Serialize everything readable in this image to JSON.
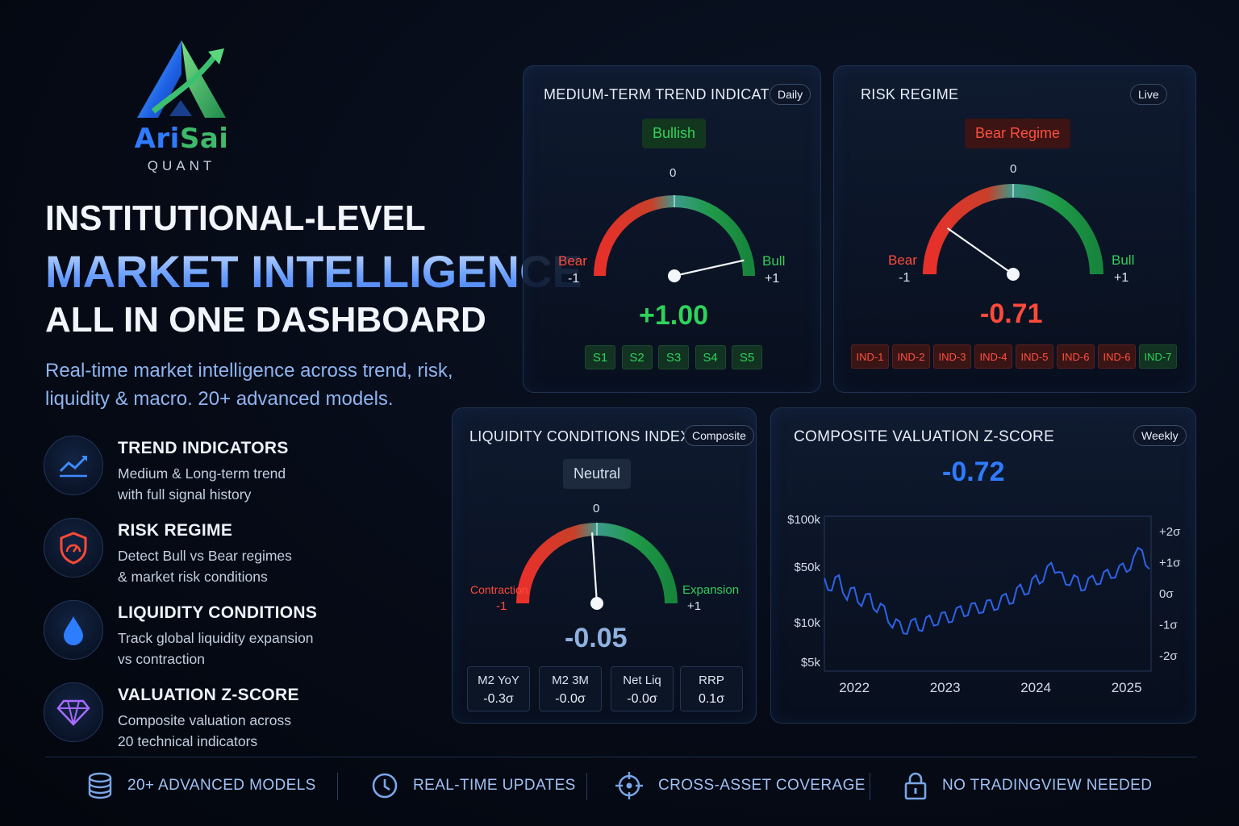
{
  "brand": {
    "name_part1": "Ari",
    "name_part2": "Sai",
    "subtitle": "QUANT"
  },
  "headline": {
    "line1": "INSTITUTIONAL-LEVEL",
    "line2": "MARKET INTELLIGENCE",
    "line3": "ALL IN ONE DASHBOARD",
    "subtext": "Real-time market intelligence across trend, risk, liquidity & macro. 20+ advanced models."
  },
  "features": [
    {
      "title": "TREND INDICATORS",
      "desc_line1": "Medium & Long-term trend",
      "desc_line2": "with full signal history",
      "icon": "trend-chart-icon"
    },
    {
      "title": "RISK REGIME",
      "desc_line1": "Detect Bull vs Bear regimes",
      "desc_line2": "& market risk conditions",
      "icon": "shield-gauge-icon"
    },
    {
      "title": "LIQUIDITY CONDITIONS",
      "desc_line1": "Track global liquidity expansion",
      "desc_line2": "vs contraction",
      "icon": "water-drop-icon"
    },
    {
      "title": "VALUATION Z-SCORE",
      "desc_line1": "Composite valuation across",
      "desc_line2": "20 technical indicators",
      "icon": "diamond-icon"
    }
  ],
  "trend_card": {
    "title": "MEDIUM-TERM TREND INDICATOR",
    "pill": "Daily",
    "status": "Bullish",
    "zero_label": "0",
    "left_label": "Bear",
    "left_value": "-1",
    "right_label": "Bull",
    "right_value": "+1",
    "value": 1.0,
    "value_text": "+1.00",
    "signals": [
      "S1",
      "S2",
      "S3",
      "S4",
      "S5"
    ]
  },
  "risk_card": {
    "title": "RISK REGIME",
    "pill": "Live",
    "status": "Bear Regime",
    "zero_label": "0",
    "left_label": "Bear",
    "left_value": "-1",
    "right_label": "Bull",
    "right_value": "+1",
    "value": -0.71,
    "value_text": "-0.71",
    "indicators": [
      {
        "label": "IND-1",
        "state": "bear"
      },
      {
        "label": "IND-2",
        "state": "bear"
      },
      {
        "label": "IND-3",
        "state": "bear"
      },
      {
        "label": "IND-4",
        "state": "bear"
      },
      {
        "label": "IND-5",
        "state": "bear"
      },
      {
        "label": "IND-6",
        "state": "bear"
      },
      {
        "label": "IND-6",
        "state": "bear"
      },
      {
        "label": "IND-7",
        "state": "bull"
      }
    ]
  },
  "liquidity_card": {
    "title": "LIQUIDITY CONDITIONS INDEX",
    "pill": "Composite",
    "status": "Neutral",
    "zero_label": "0",
    "left_label": "Contraction",
    "left_value": "-1",
    "right_label": "Expansion",
    "right_value": "+1",
    "value": -0.05,
    "value_text": "-0.05",
    "metrics": [
      {
        "name": "M2 YoY",
        "value": "-0.3σ"
      },
      {
        "name": "M2 3M",
        "value": "-0.0σ"
      },
      {
        "name": "Net Liq",
        "value": "-0.0σ"
      },
      {
        "name": "RRP",
        "value": "0.1σ"
      }
    ]
  },
  "valuation_card": {
    "title": "COMPOSITE VALUATION Z-SCORE",
    "pill": "Weekly",
    "value_text": "-0.72"
  },
  "chart_data": {
    "type": "line",
    "title": "",
    "x_ticks": [
      "2022",
      "2023",
      "2024",
      "2025"
    ],
    "y_left_ticks": [
      "$100k",
      "$50k",
      "$10k",
      "$5k"
    ],
    "y_right_ticks": [
      "+2σ",
      "+1σ",
      "0σ",
      "-1σ",
      "-2σ"
    ],
    "ylim_sigma": [
      -2.5,
      2.5
    ],
    "series": [
      {
        "color": "#2e63e8",
        "x": [
          2021.67,
          2021.75,
          2021.83,
          2021.92,
          2022.0,
          2022.08,
          2022.17,
          2022.25,
          2022.33,
          2022.42,
          2022.5,
          2022.58,
          2022.67,
          2022.75,
          2022.83,
          2022.92,
          2023.0,
          2023.08,
          2023.17,
          2023.25,
          2023.33,
          2023.42,
          2023.5,
          2023.58,
          2023.67,
          2023.75,
          2023.83,
          2023.92,
          2024.0,
          2024.08,
          2024.17,
          2024.25,
          2024.33,
          2024.42,
          2024.5,
          2024.58,
          2024.67,
          2024.75,
          2024.83,
          2024.92,
          2025.0,
          2025.08,
          2025.17,
          2025.25
        ],
        "y": [
          0.5,
          0.1,
          0.6,
          -0.2,
          0.2,
          -0.4,
          0.0,
          -0.6,
          -0.4,
          -1.1,
          -0.9,
          -1.3,
          -0.8,
          -1.2,
          -0.7,
          -1.0,
          -0.6,
          -0.9,
          -0.4,
          -0.7,
          -0.3,
          -0.6,
          -0.2,
          -0.5,
          0.0,
          -0.3,
          0.3,
          0.0,
          0.6,
          0.4,
          1.0,
          0.7,
          0.3,
          0.6,
          0.1,
          0.5,
          0.3,
          0.7,
          0.5,
          0.9,
          0.7,
          1.2,
          1.4,
          0.8
        ]
      }
    ]
  },
  "bottom_bar": [
    {
      "label": "20+ ADVANCED MODELS",
      "icon": "database-icon"
    },
    {
      "label": "REAL-TIME UPDATES",
      "icon": "clock-icon"
    },
    {
      "label": "CROSS-ASSET COVERAGE",
      "icon": "crosshair-icon"
    },
    {
      "label": "NO TRADINGVIEW NEEDED",
      "icon": "lock-icon"
    }
  ]
}
